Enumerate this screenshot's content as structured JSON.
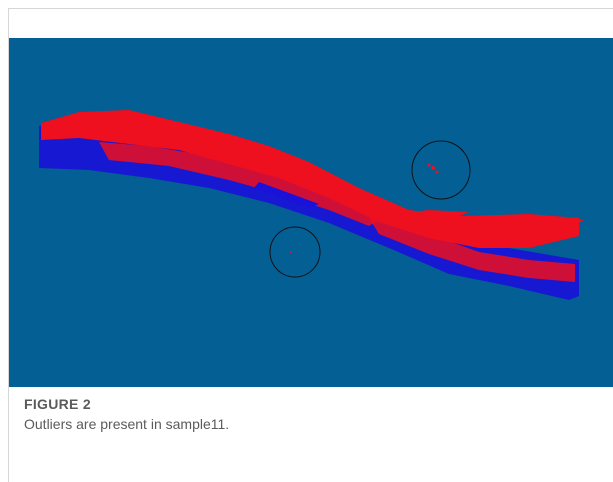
{
  "figure": {
    "label": "FIGURE 2",
    "caption": "Outliers are present in sample11."
  }
}
